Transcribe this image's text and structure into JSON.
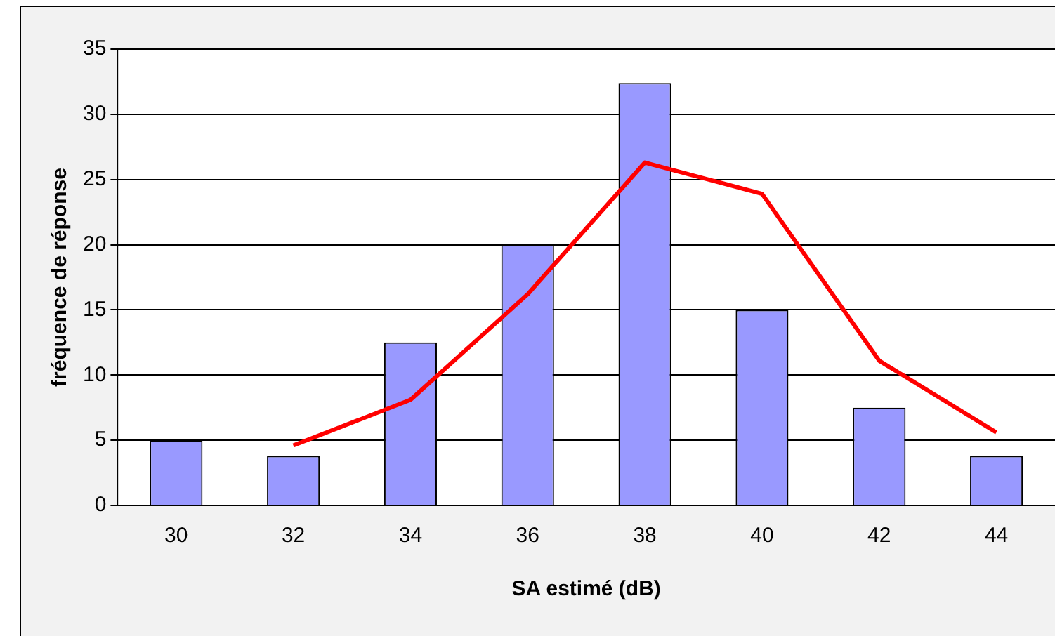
{
  "chart_data": {
    "type": "bar",
    "xlabel": "SA estimé (dB)",
    "ylabel": "fréquence de réponse",
    "categories": [
      "30",
      "32",
      "34",
      "36",
      "38",
      "40",
      "42",
      "44"
    ],
    "series": [
      {
        "color": "#9999ff",
        "values": [
          5,
          3.8,
          12.5,
          20,
          32.4,
          15,
          7.5,
          3.8
        ]
      },
      {
        "type": "line",
        "color": "#ff0000",
        "values": [
          null,
          4.6,
          8.1,
          16.2,
          26.3,
          23.9,
          11.1,
          5.6
        ]
      }
    ],
    "ylim": [
      0,
      35
    ],
    "yticks": [
      0,
      5,
      10,
      15,
      20,
      25,
      30,
      35
    ],
    "grid": "y",
    "legend": false,
    "marker": "none"
  }
}
